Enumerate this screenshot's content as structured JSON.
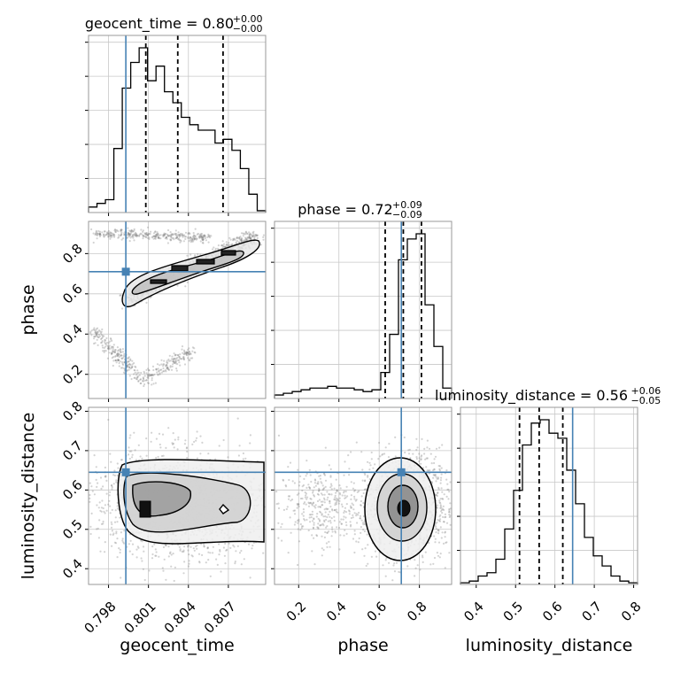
{
  "chart_data": {
    "type": "corner",
    "parameters": [
      {
        "name": "geocent_time",
        "axis_label": "geocent_time",
        "title": "geocent_time = 0.80",
        "title_sup": "+0.00",
        "title_sub": "−0.00",
        "range": [
          0.7965,
          0.8098
        ],
        "ticks": [
          0.798,
          0.801,
          0.804,
          0.807
        ],
        "tick_labels": [
          "0.798",
          "0.801",
          "0.804",
          "0.807"
        ],
        "truth": 0.7993,
        "quantiles": [
          0.8008,
          0.8032,
          0.8066
        ]
      },
      {
        "name": "phase",
        "axis_label": "phase",
        "title": "phase = 0.72",
        "title_sup": "+0.09",
        "title_sub": "−0.09",
        "range": [
          0.08,
          0.96
        ],
        "ticks": [
          0.2,
          0.4,
          0.6,
          0.8
        ],
        "tick_labels": [
          "0.2",
          "0.4",
          "0.6",
          "0.8"
        ],
        "truth": 0.71,
        "quantiles": [
          0.63,
          0.72,
          0.81
        ]
      },
      {
        "name": "luminosity_distance",
        "axis_label": "luminosity_distance",
        "title": "luminosity_distance = 0.56",
        "title_sup": "+0.06",
        "title_sub": "−0.05",
        "range": [
          0.36,
          0.81
        ],
        "ticks": [
          0.4,
          0.5,
          0.6,
          0.7,
          0.8
        ],
        "tick_labels": [
          "0.4",
          "0.5",
          "0.6",
          "0.7",
          "0.8"
        ],
        "truth": 0.645,
        "quantiles": [
          0.51,
          0.56,
          0.62
        ]
      }
    ],
    "histograms": {
      "geocent_time": [
        0.03,
        0.05,
        0.07,
        0.35,
        0.68,
        0.82,
        0.9,
        0.72,
        0.8,
        0.66,
        0.6,
        0.52,
        0.48,
        0.45,
        0.45,
        0.38,
        0.4,
        0.34,
        0.24,
        0.1,
        0.01
      ],
      "phase": [
        0.02,
        0.03,
        0.04,
        0.05,
        0.06,
        0.06,
        0.07,
        0.06,
        0.06,
        0.05,
        0.04,
        0.05,
        0.15,
        0.37,
        0.8,
        0.92,
        0.95,
        0.54,
        0.3,
        0.06
      ],
      "luminosity_distance": [
        0.01,
        0.02,
        0.05,
        0.07,
        0.15,
        0.33,
        0.56,
        0.83,
        0.96,
        0.98,
        0.9,
        0.87,
        0.68,
        0.48,
        0.28,
        0.17,
        0.11,
        0.05,
        0.02,
        0.01
      ]
    },
    "grid": true,
    "truth_color": "#4682b4",
    "hist_color": "#000000",
    "scatter_color": "#808080"
  }
}
